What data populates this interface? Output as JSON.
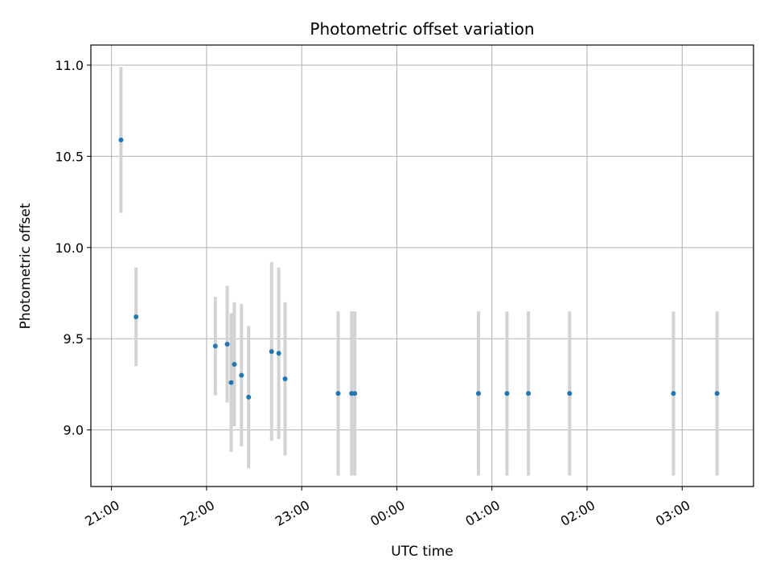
{
  "chart_data": {
    "type": "scatter",
    "title": "Photometric offset variation",
    "xlabel": "UTC time",
    "ylabel": "Photometric offset",
    "x_unit": "minutes after 21:00 UTC",
    "xlim": [
      -13,
      405
    ],
    "ylim": [
      8.69,
      11.11
    ],
    "grid": true,
    "x_ticks": [
      {
        "value": 0,
        "label": "21:00"
      },
      {
        "value": 60,
        "label": "22:00"
      },
      {
        "value": 120,
        "label": "23:00"
      },
      {
        "value": 180,
        "label": "00:00"
      },
      {
        "value": 240,
        "label": "01:00"
      },
      {
        "value": 300,
        "label": "02:00"
      },
      {
        "value": 360,
        "label": "03:00"
      }
    ],
    "y_ticks": [
      {
        "value": 9.0,
        "label": "9.0"
      },
      {
        "value": 9.5,
        "label": "9.5"
      },
      {
        "value": 10.0,
        "label": "10.0"
      },
      {
        "value": 10.5,
        "label": "10.5"
      },
      {
        "value": 11.0,
        "label": "11.0"
      }
    ],
    "marker_color": "#1f77b4",
    "errorbar_color": "#d3d3d3",
    "points": [
      {
        "x": 6,
        "y": 10.59,
        "err": 0.4
      },
      {
        "x": 15.5,
        "y": 9.62,
        "err": 0.27
      },
      {
        "x": 65.5,
        "y": 9.46,
        "err": 0.27
      },
      {
        "x": 73,
        "y": 9.47,
        "err": 0.32
      },
      {
        "x": 75.5,
        "y": 9.26,
        "err": 0.38
      },
      {
        "x": 77.5,
        "y": 9.36,
        "err": 0.34
      },
      {
        "x": 82,
        "y": 9.3,
        "err": 0.39
      },
      {
        "x": 86.5,
        "y": 9.18,
        "err": 0.39
      },
      {
        "x": 101,
        "y": 9.43,
        "err": 0.49
      },
      {
        "x": 105.5,
        "y": 9.42,
        "err": 0.47
      },
      {
        "x": 109.5,
        "y": 9.28,
        "err": 0.42
      },
      {
        "x": 143,
        "y": 9.2,
        "err": 0.45
      },
      {
        "x": 151.5,
        "y": 9.2,
        "err": 0.45
      },
      {
        "x": 153.5,
        "y": 9.2,
        "err": 0.45
      },
      {
        "x": 231.5,
        "y": 9.2,
        "err": 0.45
      },
      {
        "x": 249.5,
        "y": 9.2,
        "err": 0.45
      },
      {
        "x": 263,
        "y": 9.2,
        "err": 0.45
      },
      {
        "x": 289,
        "y": 9.2,
        "err": 0.45
      },
      {
        "x": 354.5,
        "y": 9.2,
        "err": 0.45
      },
      {
        "x": 382,
        "y": 9.2,
        "err": 0.45
      }
    ]
  }
}
